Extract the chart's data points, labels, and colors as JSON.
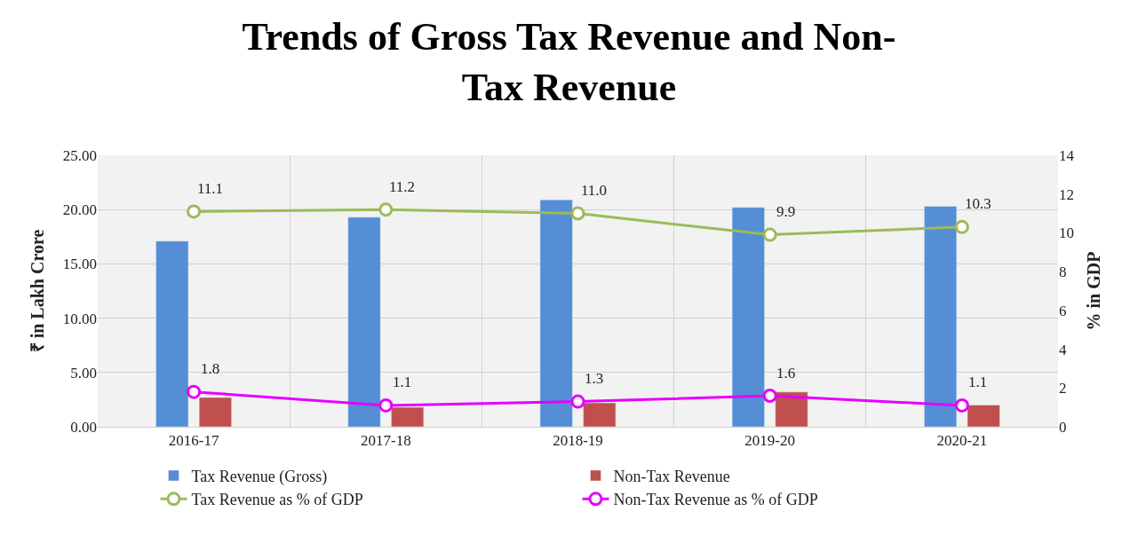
{
  "chart_data": {
    "type": "bar",
    "title": "Trends of Gross Tax Revenue and Non-Tax Revenue",
    "categories": [
      "2016-17",
      "2017-18",
      "2018-19",
      "2019-20",
      "2020-21"
    ],
    "series": [
      {
        "name": "Tax Revenue (Gross)",
        "color": "#558ed5",
        "values": [
          17.1,
          19.3,
          20.9,
          20.2,
          20.3
        ]
      },
      {
        "name": "Non-Tax Revenue",
        "color": "#c0504d",
        "values": [
          2.7,
          1.8,
          2.2,
          3.2,
          2.0
        ]
      },
      {
        "name": "Tax Revenue as % of GDP",
        "type": "line",
        "axis": "y2",
        "color": "#9bbb59",
        "values": [
          11.1,
          11.2,
          11.0,
          9.9,
          10.3
        ],
        "value_labels": [
          "11.1",
          "11.2",
          "11.0",
          "9.9",
          "10.3"
        ]
      },
      {
        "name": "Non-Tax Revenue as % of GDP",
        "type": "line",
        "axis": "y2",
        "color": "#e600ff",
        "values": [
          1.8,
          1.1,
          1.3,
          1.6,
          1.1
        ],
        "value_labels": [
          "1.8",
          "1.1",
          "1.3",
          "1.6",
          "1.1"
        ]
      }
    ],
    "ylabel": "₹ in Lakh Crore",
    "y2label": "% in GDP",
    "ylim": [
      0,
      25
    ],
    "yticks": [
      {
        "value": 0,
        "label": "0.00"
      },
      {
        "value": 5,
        "label": "5.00"
      },
      {
        "value": 10,
        "label": "10.00"
      },
      {
        "value": 15,
        "label": "15.00"
      },
      {
        "value": 20,
        "label": "20.00"
      },
      {
        "value": 25,
        "label": "25.00"
      }
    ],
    "y2lim": [
      0,
      14
    ],
    "y2ticks": [
      0,
      2,
      4,
      6,
      8,
      10,
      12,
      14
    ],
    "grid": true,
    "legend": "bottom",
    "marker": "circle"
  }
}
